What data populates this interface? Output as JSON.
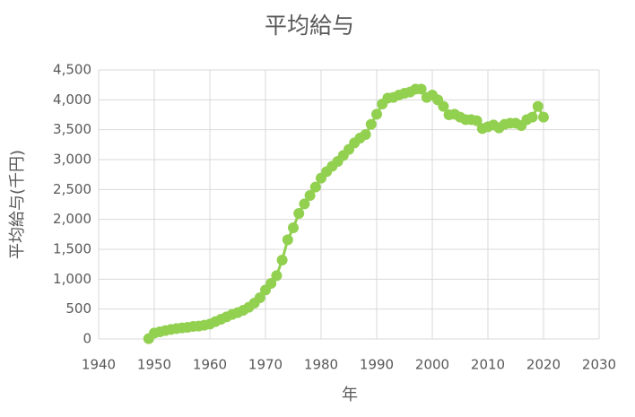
{
  "chart_data": {
    "type": "scatter",
    "title": "平均給与",
    "x_label": "年",
    "y_label": "平均給与(千円)",
    "x": [
      1949,
      1950,
      1951,
      1952,
      1953,
      1954,
      1955,
      1956,
      1957,
      1958,
      1959,
      1960,
      1961,
      1962,
      1963,
      1964,
      1965,
      1966,
      1967,
      1968,
      1969,
      1970,
      1971,
      1972,
      1973,
      1974,
      1975,
      1976,
      1977,
      1978,
      1979,
      1980,
      1981,
      1982,
      1983,
      1984,
      1985,
      1986,
      1987,
      1988,
      1989,
      1990,
      1991,
      1992,
      1993,
      1994,
      1995,
      1996,
      1997,
      1998,
      1999,
      2000,
      2001,
      2002,
      2003,
      2004,
      2005,
      2006,
      2007,
      2008,
      2009,
      2010,
      2011,
      2012,
      2013,
      2014,
      2015,
      2016,
      2017,
      2018,
      2019,
      2020
    ],
    "series": [
      {
        "color": "#92d050",
        "values": [
          5,
          100,
          120,
          140,
          160,
          175,
          185,
          195,
          210,
          215,
          230,
          250,
          290,
          330,
          370,
          410,
          440,
          480,
          530,
          600,
          690,
          820,
          930,
          1060,
          1320,
          1660,
          1860,
          2100,
          2260,
          2400,
          2540,
          2690,
          2800,
          2890,
          2970,
          3070,
          3170,
          3280,
          3360,
          3420,
          3590,
          3760,
          3930,
          4030,
          4040,
          4080,
          4110,
          4130,
          4180,
          4180,
          4040,
          4080,
          4000,
          3890,
          3750,
          3760,
          3710,
          3670,
          3670,
          3650,
          3520,
          3550,
          3580,
          3530,
          3590,
          3610,
          3610,
          3570,
          3670,
          3710,
          3890,
          3710
        ]
      }
    ],
    "xlim": [
      1940,
      2030
    ],
    "xticks": [
      1940,
      1950,
      1960,
      1970,
      1980,
      1990,
      2000,
      2010,
      2020,
      2030
    ],
    "ylim": [
      0,
      4500
    ],
    "yticks": [
      0,
      500,
      {
        "value": 1000,
        "label": "1,000"
      },
      {
        "value": 1500,
        "label": "1,500"
      },
      {
        "value": 2000,
        "label": "2,000"
      },
      {
        "value": 2500,
        "label": "2,500"
      },
      {
        "value": 3000,
        "label": "3,000"
      },
      {
        "value": 3500,
        "label": "3,500"
      },
      {
        "value": 4000,
        "label": "4,000"
      },
      {
        "value": 4500,
        "label": "4,500"
      }
    ],
    "grid": true
  }
}
